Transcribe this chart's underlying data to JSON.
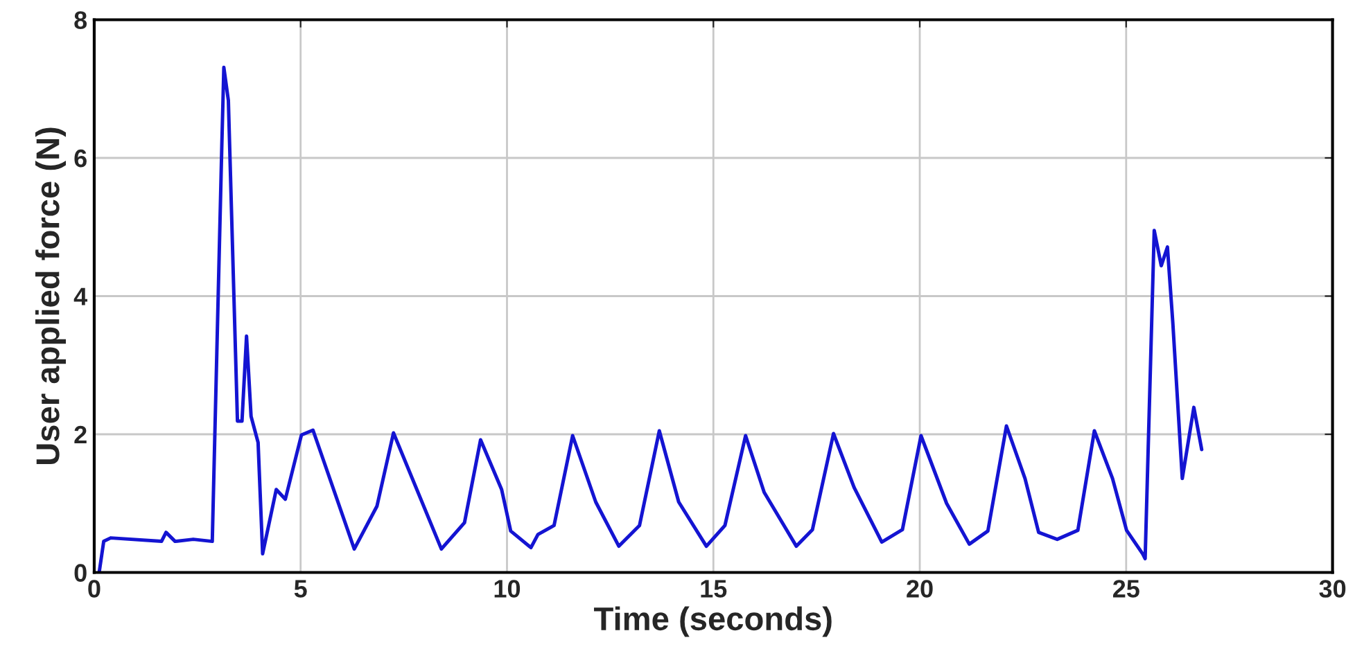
{
  "chart_data": {
    "type": "line",
    "xlabel": "Time (seconds)",
    "ylabel": "User applied force (N)",
    "xlim": [
      0,
      30
    ],
    "xticks": [
      0,
      5,
      10,
      15,
      20,
      25,
      30
    ],
    "ylim": [
      0,
      8
    ],
    "yticks": [
      0,
      2,
      4,
      6,
      8
    ],
    "grid": true,
    "legend": false,
    "series": [
      {
        "color": "#1414d2",
        "x": [
          0.12,
          0.23,
          0.4,
          1.63,
          1.74,
          1.96,
          2.4,
          2.86,
          3.09,
          3.14,
          3.25,
          3.47,
          3.58,
          3.69,
          3.8,
          3.97,
          4.08,
          4.41,
          4.63,
          5.02,
          5.3,
          6.3,
          6.85,
          7.25,
          8.41,
          8.97,
          9.36,
          9.87,
          10.09,
          10.58,
          10.75,
          11.14,
          11.59,
          12.15,
          12.71,
          13.21,
          13.69,
          14.16,
          14.83,
          15.28,
          15.78,
          16.23,
          17.01,
          17.4,
          17.91,
          18.41,
          19.08,
          19.58,
          20.03,
          20.65,
          21.2,
          21.65,
          22.1,
          22.55,
          22.88,
          23.33,
          23.83,
          24.23,
          24.67,
          25.01,
          25.4,
          25.46,
          25.68,
          25.85,
          26.0,
          26.13,
          26.36,
          26.64,
          26.83
        ],
        "values": [
          0.0,
          0.45,
          0.5,
          0.45,
          0.58,
          0.45,
          0.48,
          0.45,
          6.15,
          7.31,
          6.83,
          2.19,
          2.19,
          3.42,
          2.26,
          1.88,
          0.27,
          1.2,
          1.06,
          1.99,
          2.06,
          0.34,
          0.96,
          2.02,
          0.34,
          0.72,
          1.92,
          1.2,
          0.6,
          0.36,
          0.55,
          0.68,
          1.98,
          1.02,
          0.38,
          0.68,
          2.05,
          1.02,
          0.38,
          0.68,
          1.98,
          1.16,
          0.38,
          0.62,
          2.01,
          1.23,
          0.44,
          0.62,
          1.98,
          1.0,
          0.41,
          0.6,
          2.12,
          1.36,
          0.58,
          0.48,
          0.61,
          2.05,
          1.36,
          0.61,
          0.27,
          0.2,
          4.95,
          4.44,
          4.71,
          3.62,
          1.36,
          2.39,
          1.78
        ]
      }
    ]
  }
}
